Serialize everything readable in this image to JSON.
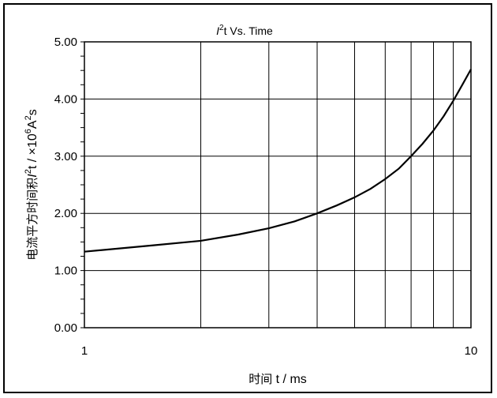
{
  "chart_data": {
    "type": "line",
    "title": {
      "symbol": "I",
      "sup": "2",
      "rest": "t  Vs. Time"
    },
    "xlabel": {
      "cjk": "时间",
      "rest": " t / ms"
    },
    "ylabel": {
      "cjk": "电流平方时间积",
      "sym": "I",
      "sup1": "2",
      "mid": "t / ×10",
      "sup2": "6",
      "mid2": "A",
      "sup3": "2",
      "end": "s"
    },
    "x_scale": "log",
    "xlim": [
      1,
      10
    ],
    "ylim": [
      0,
      5
    ],
    "x_tick_labels": [
      "1",
      "10"
    ],
    "y_tick_labels": [
      "0.00",
      "1.00",
      "2.00",
      "3.00",
      "4.00",
      "5.00"
    ],
    "grid": true,
    "series": [
      {
        "x": [
          1,
          1.5,
          2,
          2.5,
          3,
          3.5,
          4,
          4.5,
          5,
          5.5,
          6,
          6.5,
          7,
          7.5,
          8,
          8.5,
          9,
          9.5,
          10
        ],
        "values": [
          1.33,
          1.44,
          1.52,
          1.63,
          1.74,
          1.86,
          2.0,
          2.14,
          2.28,
          2.43,
          2.6,
          2.78,
          3.0,
          3.22,
          3.45,
          3.7,
          3.97,
          4.25,
          4.52
        ],
        "color": "#000000"
      }
    ]
  }
}
